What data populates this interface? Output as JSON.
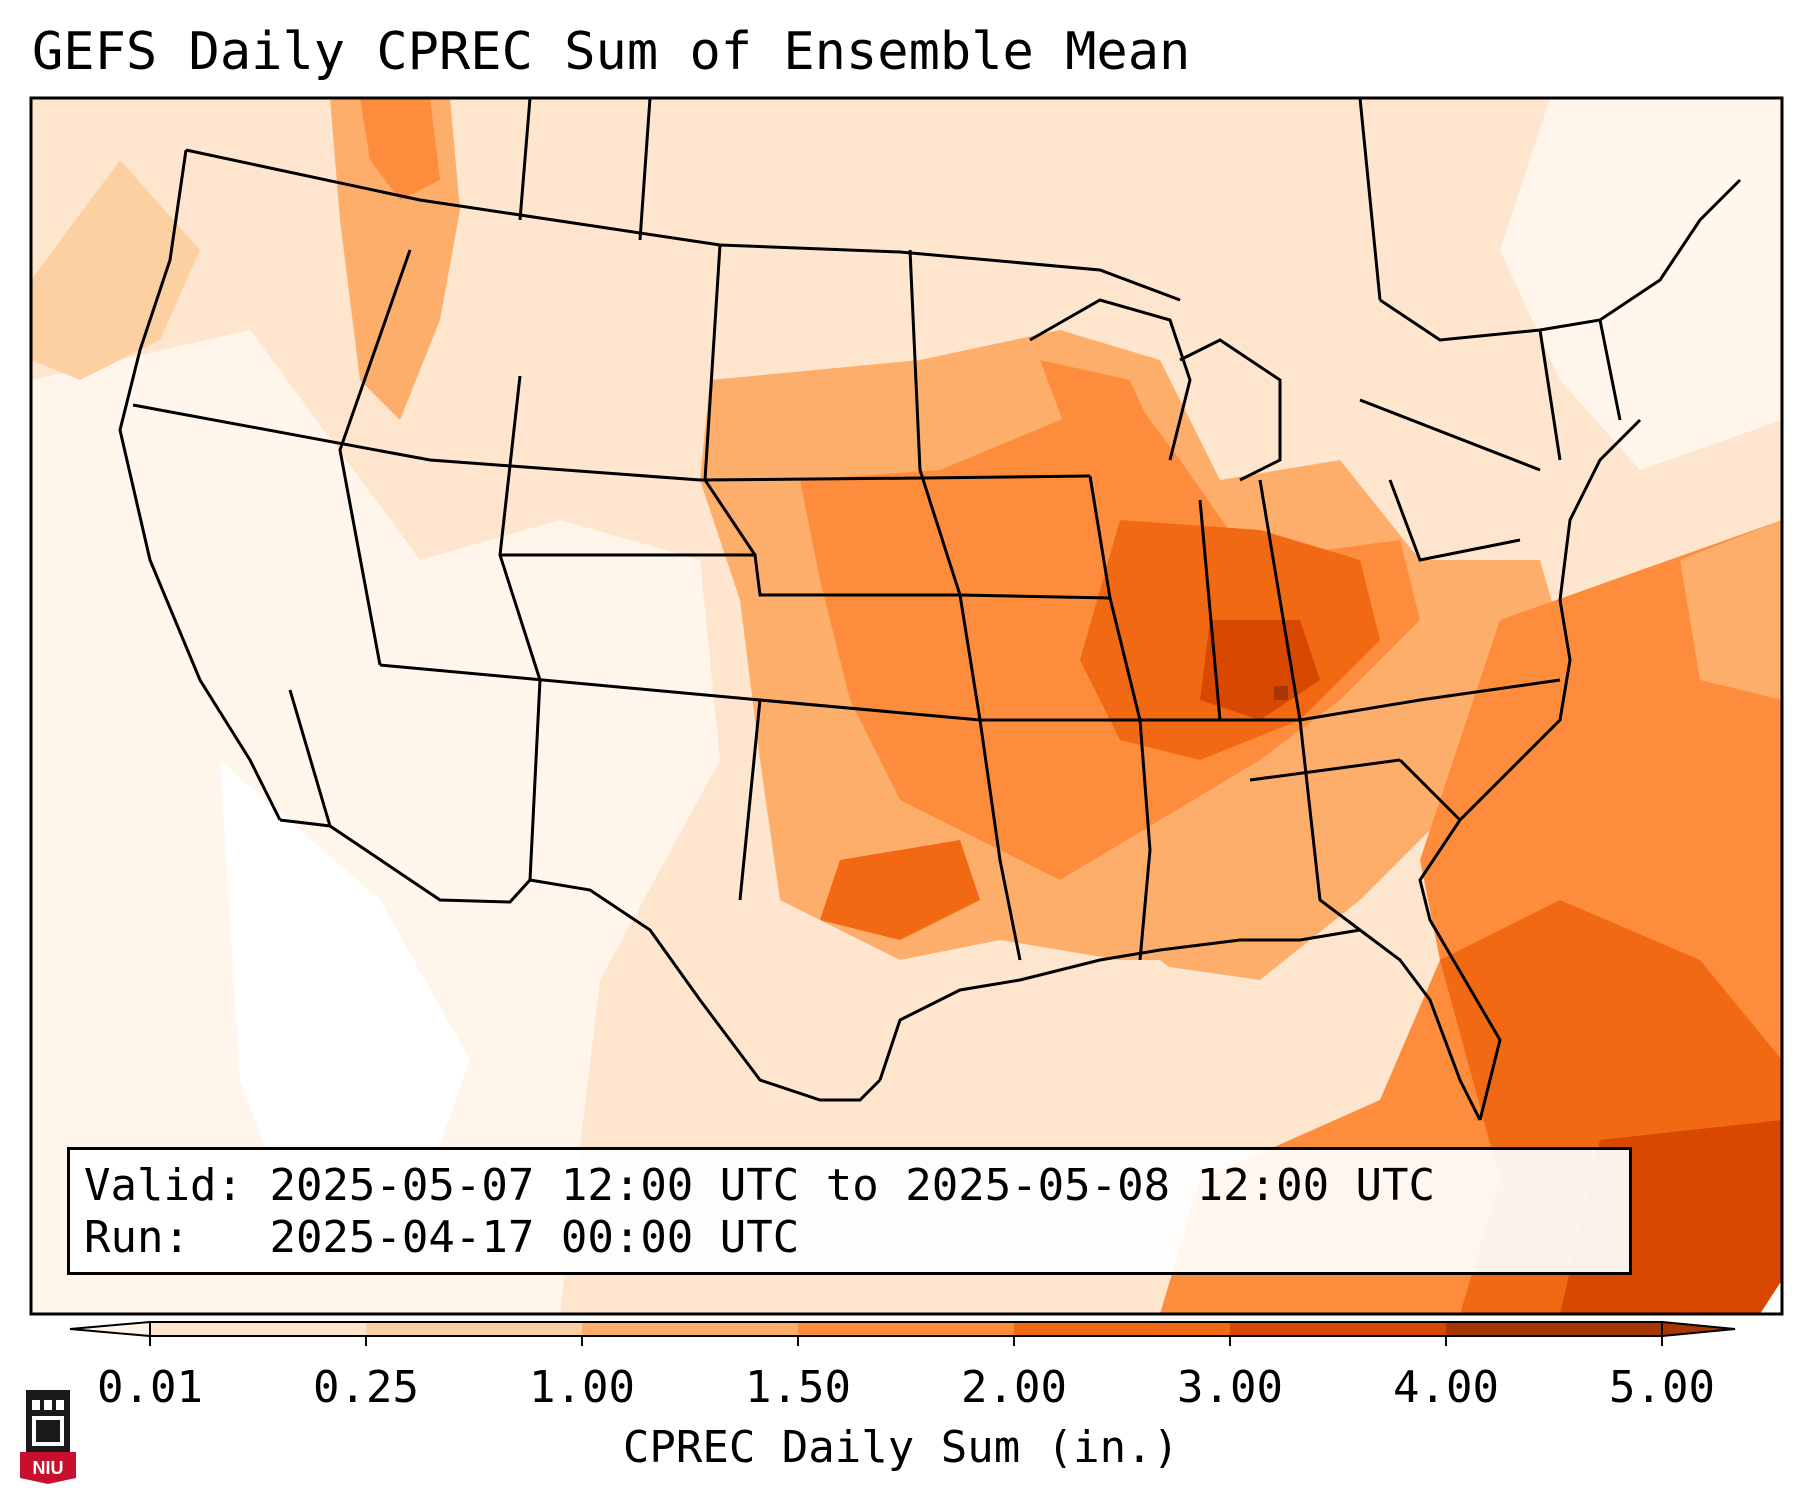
{
  "title": "GEFS Daily CPREC Sum of Ensemble Mean",
  "info": {
    "valid_label": "Valid:",
    "valid_value": "2025-05-07 12:00 UTC to 2025-05-08 12:00 UTC",
    "run_label": "Run:",
    "run_value": "2025-04-17 00:00 UTC"
  },
  "colorbar": {
    "label": "CPREC Daily Sum (in.)",
    "ticks": [
      "0.01",
      "0.25",
      "1.00",
      "1.50",
      "2.00",
      "3.00",
      "4.00",
      "5.00"
    ],
    "colors": [
      "#fff5eb",
      "#fee6ce",
      "#fdd0a2",
      "#fdae6b",
      "#fd8d3c",
      "#f16913",
      "#d94801",
      "#a63603"
    ],
    "extend": "both"
  },
  "logo": {
    "text": "NIU",
    "colors": {
      "tower": "#1a1a1a",
      "banner": "#c8102e"
    }
  },
  "colors": {
    "background": "#ffffff",
    "border": "#000000"
  }
}
